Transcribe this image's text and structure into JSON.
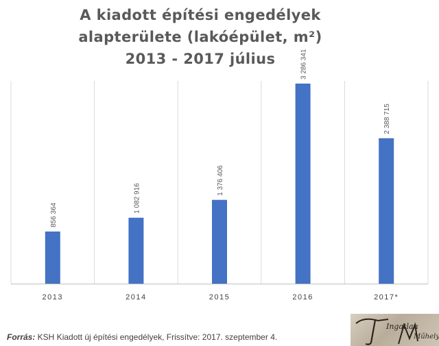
{
  "chart_data": {
    "type": "bar",
    "title_lines": [
      "A kiadott építési engedélyek",
      "alapterülete (lakóépület, m²)",
      "2013 - 2017 július"
    ],
    "categories": [
      "2013",
      "2014",
      "2015",
      "2016",
      "2017*"
    ],
    "values": [
      856364,
      1082916,
      1376406,
      3286341,
      2388715
    ],
    "data_labels": [
      "856 364",
      "1 082 916",
      "1 376 406",
      "3 286 341",
      "2 388 715"
    ],
    "ylim": [
      0,
      3500000
    ],
    "grid": "vertical separators",
    "legend": "none",
    "bar_color": "#4472C4"
  },
  "source": {
    "label": "Forrás:",
    "text": " KSH Kiadott új építési engedélyek, Frissítve: 2017. szeptember 4."
  },
  "logo": {
    "text_top": "Ingatlan",
    "text_bottom": "Műhely"
  }
}
